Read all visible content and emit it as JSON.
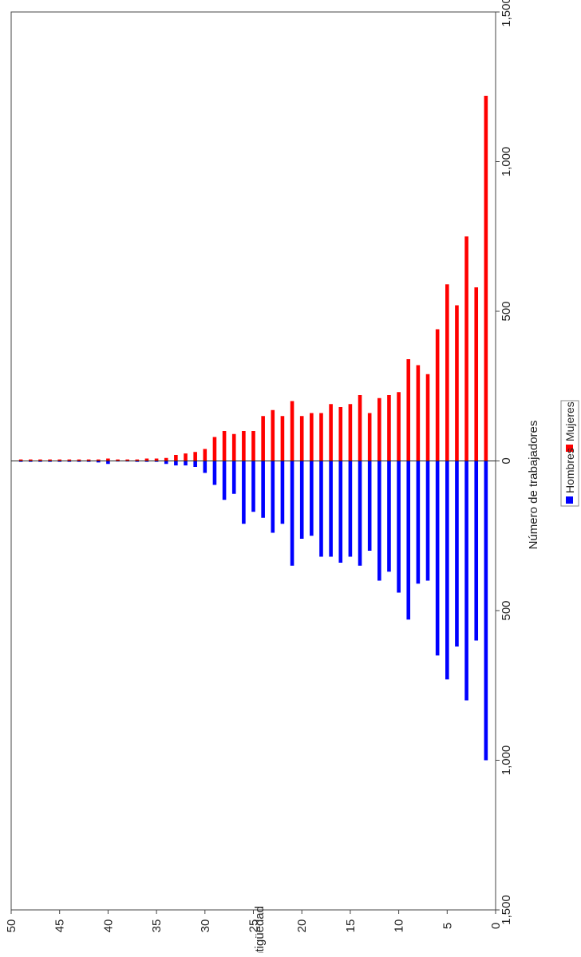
{
  "chart_data": {
    "type": "bar",
    "orientation": "population-pyramid",
    "ylabel": "Antigüedad",
    "xlabel": "Número de trabajadores",
    "y_ticks": [
      "0",
      "5",
      "10",
      "15",
      "20",
      "25",
      "30",
      "35",
      "40",
      "45",
      "50"
    ],
    "x_ticks": [
      "1,500",
      "1,000",
      "500",
      "0",
      "500",
      "1,000",
      "1,500"
    ],
    "xlim": [
      -1500,
      1500
    ],
    "ylim": [
      0,
      50
    ],
    "grid": false,
    "legend_position": "bottom",
    "categories": [
      1,
      2,
      3,
      4,
      5,
      6,
      7,
      8,
      9,
      10,
      11,
      12,
      13,
      14,
      15,
      16,
      17,
      18,
      19,
      20,
      21,
      22,
      23,
      24,
      25,
      26,
      27,
      28,
      29,
      30,
      31,
      32,
      33,
      34,
      35,
      36,
      37,
      38,
      39,
      40,
      41,
      42,
      43,
      44,
      45,
      46,
      47,
      48,
      49
    ],
    "series": [
      {
        "name": "Hombres",
        "color": "#0000ff",
        "values": [
          -1000,
          -600,
          -800,
          -620,
          -730,
          -650,
          -400,
          -410,
          -530,
          -440,
          -370,
          -400,
          -300,
          -350,
          -320,
          -340,
          -320,
          -320,
          -250,
          -260,
          -350,
          -210,
          -240,
          -190,
          -170,
          -210,
          -110,
          -130,
          -80,
          -40,
          -20,
          -15,
          -15,
          -10,
          -3,
          -3,
          -3,
          -2,
          -2,
          -10,
          -5,
          -3,
          -3,
          -3,
          -3,
          -3,
          -3,
          -3,
          -3
        ]
      },
      {
        "name": "Mujeres",
        "color": "#ff0000",
        "values": [
          1220,
          580,
          750,
          520,
          590,
          440,
          290,
          320,
          340,
          230,
          220,
          210,
          160,
          220,
          190,
          180,
          190,
          160,
          160,
          150,
          200,
          150,
          170,
          150,
          100,
          100,
          90,
          100,
          80,
          40,
          30,
          25,
          20,
          10,
          8,
          8,
          5,
          5,
          5,
          8,
          5,
          5,
          5,
          5,
          5,
          5,
          5,
          5,
          5
        ]
      }
    ]
  }
}
